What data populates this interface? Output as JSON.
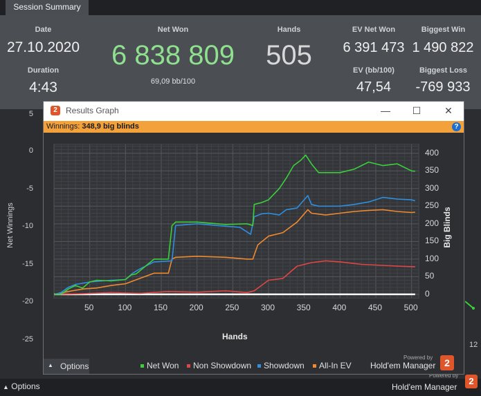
{
  "tab": {
    "label": "Session Summary"
  },
  "summary": {
    "date_label": "Date",
    "date_value": "27.10.2020",
    "duration_label": "Duration",
    "duration_value": "4:43",
    "netwon_label": "Net Won",
    "netwon_value": "6 838 809",
    "netwon_sub": "69,09 bb/100",
    "hands_label": "Hands",
    "hands_value": "505",
    "ev_label": "EV Net Won",
    "ev_value": "6 391 473",
    "evbb_label": "EV (bb/100)",
    "evbb_value": "47,54",
    "bigwin_label": "Biggest Win",
    "bigwin_value": "1 490 822",
    "bigloss_label": "Biggest Loss",
    "bigloss_value": "-769 933"
  },
  "back_chart": {
    "y_label": "Net Winnings",
    "y_ticks": [
      "5",
      "0",
      "-5",
      "-10",
      "-15",
      "-20",
      "-25"
    ],
    "x_partial_tick": "12"
  },
  "bottom": {
    "options_label": "Options",
    "powered_by": "Powered by",
    "brand": "Hold'em Manager",
    "brand_badge": "2"
  },
  "window": {
    "title": "Results Graph",
    "badge": "2",
    "minimize": "—",
    "maximize": "☐",
    "close": "✕",
    "winnings_label": "Winnings:",
    "winnings_value": "348,9 big blinds",
    "help": "?",
    "options_label": "Options",
    "powered_by": "Powered by",
    "brand": "Hold'em Manager",
    "brand_badge": "2"
  },
  "chart_data": {
    "type": "line",
    "xlabel": "Hands",
    "ylabel": "Big Blinds",
    "x_ticks": [
      50,
      100,
      150,
      200,
      250,
      300,
      350,
      400,
      450,
      500
    ],
    "y_ticks": [
      0,
      50,
      100,
      150,
      200,
      250,
      300,
      350,
      400
    ],
    "xlim": [
      0,
      510
    ],
    "ylim": [
      -10,
      425
    ],
    "grid": true,
    "legend_position": "bottom",
    "series": [
      {
        "name": "Net Won",
        "color": "#3ccf3c",
        "x": [
          0,
          10,
          20,
          30,
          40,
          50,
          60,
          80,
          100,
          108,
          115,
          125,
          140,
          160,
          165,
          170,
          200,
          240,
          270,
          278,
          280,
          290,
          300,
          315,
          325,
          335,
          345,
          352,
          360,
          370,
          400,
          420,
          440,
          460,
          480,
          500,
          505
        ],
        "y": [
          0,
          0,
          15,
          25,
          18,
          35,
          40,
          38,
          42,
          55,
          58,
          75,
          100,
          100,
          195,
          205,
          205,
          198,
          200,
          195,
          255,
          260,
          268,
          300,
          330,
          365,
          380,
          395,
          370,
          345,
          345,
          355,
          375,
          365,
          370,
          350,
          348.9
        ]
      },
      {
        "name": "Non Showdown",
        "color": "#e04646",
        "x": [
          0,
          40,
          80,
          120,
          160,
          200,
          240,
          270,
          280,
          300,
          320,
          340,
          360,
          380,
          400,
          430,
          460,
          480,
          505
        ],
        "y": [
          0,
          2,
          5,
          3,
          8,
          6,
          10,
          5,
          10,
          40,
          45,
          80,
          90,
          95,
          92,
          85,
          82,
          80,
          78
        ]
      },
      {
        "name": "Showdown",
        "color": "#2f8fe0",
        "x": [
          0,
          10,
          20,
          30,
          50,
          80,
          100,
          110,
          120,
          140,
          165,
          170,
          200,
          230,
          260,
          275,
          280,
          290,
          300,
          315,
          325,
          340,
          355,
          360,
          370,
          400,
          420,
          440,
          460,
          480,
          500,
          505
        ],
        "y": [
          0,
          5,
          20,
          28,
          35,
          40,
          42,
          60,
          72,
          92,
          95,
          195,
          200,
          195,
          190,
          170,
          220,
          228,
          230,
          225,
          240,
          245,
          280,
          255,
          250,
          250,
          255,
          262,
          275,
          270,
          268,
          265
        ]
      },
      {
        "name": "All-In EV",
        "color": "#f08a30",
        "x": [
          0,
          20,
          40,
          60,
          80,
          100,
          120,
          140,
          160,
          165,
          170,
          200,
          240,
          270,
          278,
          285,
          300,
          320,
          340,
          355,
          360,
          380,
          400,
          420,
          440,
          460,
          480,
          500,
          505
        ],
        "y": [
          0,
          8,
          15,
          18,
          25,
          30,
          45,
          60,
          60,
          100,
          105,
          108,
          105,
          100,
          100,
          140,
          165,
          175,
          205,
          240,
          230,
          225,
          230,
          235,
          238,
          240,
          235,
          232,
          233
        ]
      }
    ]
  }
}
